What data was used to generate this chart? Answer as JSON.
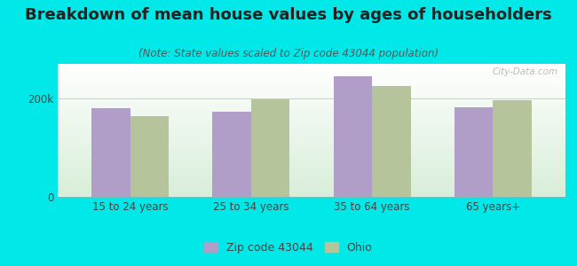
{
  "title": "Breakdown of mean house values by ages of householders",
  "subtitle": "(Note: State values scaled to Zip code 43044 population)",
  "categories": [
    "15 to 24 years",
    "25 to 34 years",
    "35 to 64 years",
    "65 years+"
  ],
  "zip_values": [
    180000,
    172000,
    245000,
    182000
  ],
  "ohio_values": [
    163000,
    198000,
    225000,
    197000
  ],
  "zip_color": "#b09ec9",
  "ohio_color": "#b5c49a",
  "background_color": "#00e8e8",
  "ylim": [
    0,
    270000
  ],
  "bar_width": 0.32,
  "legend_zip": "Zip code 43044",
  "legend_ohio": "Ohio",
  "title_fontsize": 13,
  "subtitle_fontsize": 8.5,
  "tick_fontsize": 8.5,
  "legend_fontsize": 9
}
